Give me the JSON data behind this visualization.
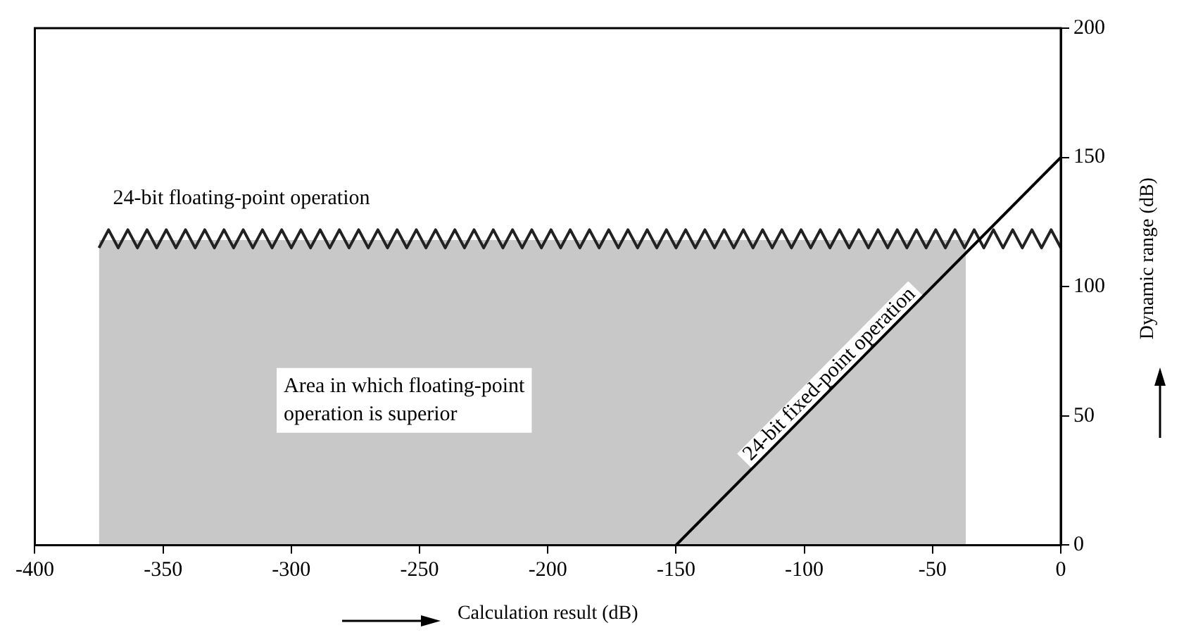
{
  "chart_data": {
    "type": "line",
    "xlabel": "Calculation result (dB)",
    "ylabel": "Dynamic range (dB)",
    "xlim": [
      -400,
      0
    ],
    "xticks": [
      -400,
      -350,
      -300,
      -250,
      -200,
      -150,
      -100,
      -50,
      0
    ],
    "ylim": [
      0,
      200
    ],
    "yticks": [
      0,
      50,
      100,
      150,
      200
    ],
    "grid": false,
    "series": [
      {
        "type": "area",
        "color": "#c8c8c8",
        "x": [
          -375,
          -37
        ],
        "values": [
          118,
          118
        ]
      },
      {
        "name": "24-bit floating-point operation",
        "color": "#222222",
        "x": [
          -375,
          -371.25,
          -367.5,
          -363.75,
          -360,
          -356.25,
          -352.5,
          -348.75,
          -345,
          -341.25,
          -337.5,
          -333.75,
          -330,
          -326.25,
          -322.5,
          -318.75,
          -315,
          -311.25,
          -307.5,
          -303.75,
          -300,
          -296.25,
          -292.5,
          -288.75,
          -285,
          -281.25,
          -277.5,
          -273.75,
          -270,
          -266.25,
          -262.5,
          -258.75,
          -255,
          -251.25,
          -247.5,
          -243.75,
          -240,
          -236.25,
          -232.5,
          -228.75,
          -225,
          -221.25,
          -217.5,
          -213.75,
          -210,
          -206.25,
          -202.5,
          -198.75,
          -195,
          -191.25,
          -187.5,
          -183.75,
          -180,
          -176.25,
          -172.5,
          -168.75,
          -165,
          -161.25,
          -157.5,
          -153.75,
          -150,
          -146.25,
          -142.5,
          -138.75,
          -135,
          -131.25,
          -127.5,
          -123.75,
          -120,
          -116.25,
          -112.5,
          -108.75,
          -105,
          -101.25,
          -97.5,
          -93.75,
          -90,
          -86.25,
          -82.5,
          -78.75,
          -75,
          -71.25,
          -67.5,
          -63.75,
          -60,
          -56.25,
          -52.5,
          -48.75,
          -45,
          -41.25,
          -37.5,
          -33.75,
          -30,
          -26.25,
          -22.5,
          -18.75,
          -15,
          -11.25,
          -7.5,
          -3.75,
          0
        ],
        "values": [
          115,
          122,
          115,
          122,
          115,
          122,
          115,
          122,
          115,
          122,
          115,
          122,
          115,
          122,
          115,
          122,
          115,
          122,
          115,
          122,
          115,
          122,
          115,
          122,
          115,
          122,
          115,
          122,
          115,
          122,
          115,
          122,
          115,
          122,
          115,
          122,
          115,
          122,
          115,
          122,
          115,
          122,
          115,
          122,
          115,
          122,
          115,
          122,
          115,
          122,
          115,
          122,
          115,
          122,
          115,
          122,
          115,
          122,
          115,
          122,
          115,
          122,
          115,
          122,
          115,
          122,
          115,
          122,
          115,
          122,
          115,
          122,
          115,
          122,
          115,
          122,
          115,
          122,
          115,
          122,
          115,
          122,
          115,
          122,
          115,
          122,
          115,
          122,
          115,
          122,
          115,
          122,
          115,
          122,
          115,
          122,
          115,
          122,
          115,
          122,
          115
        ]
      },
      {
        "name": "24-bit fixed-point operation",
        "color": "#000000",
        "x": [
          -150,
          0
        ],
        "values": [
          0,
          150
        ]
      }
    ],
    "annotations": [
      "Area in which floating-point operation is superior"
    ]
  }
}
